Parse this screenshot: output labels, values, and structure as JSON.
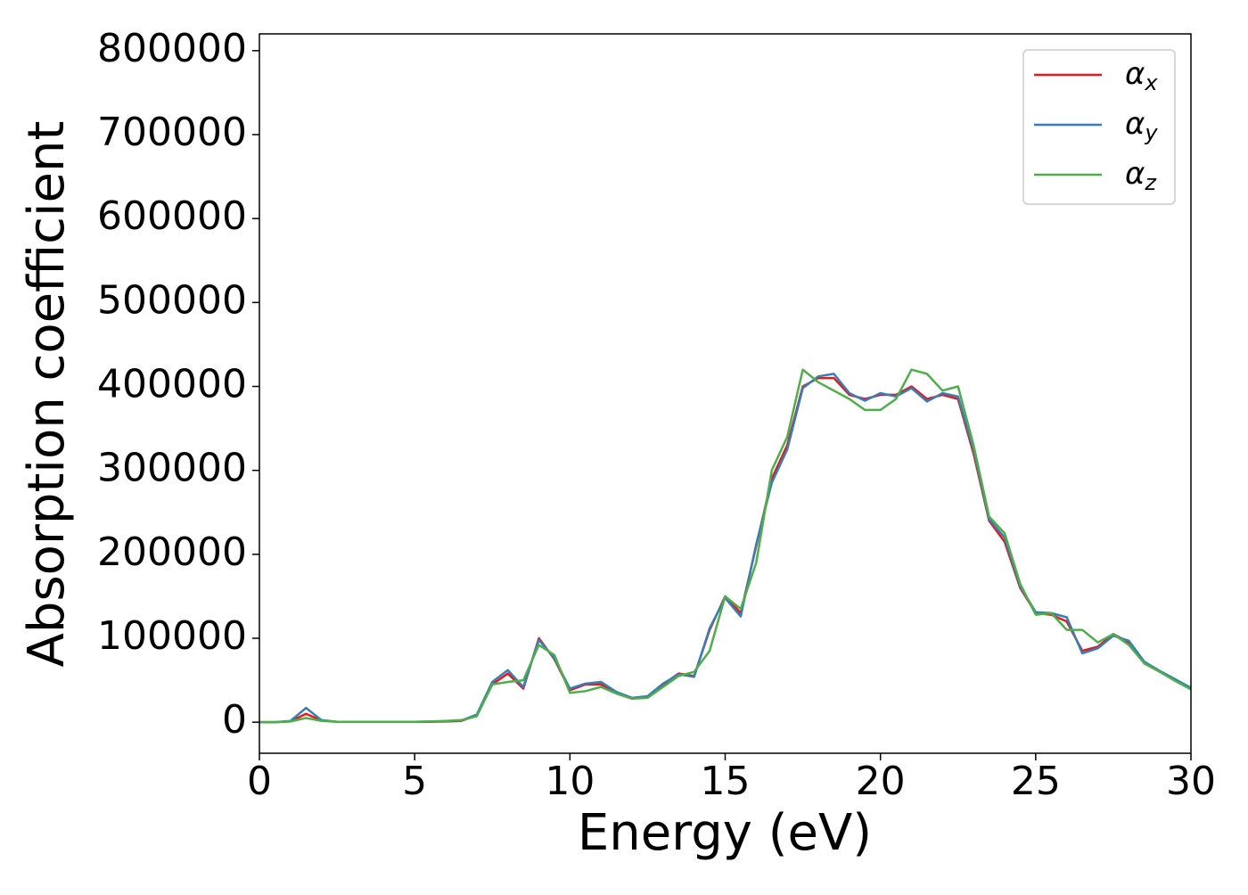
{
  "chart_data": {
    "type": "line",
    "xlabel": "Energy (eV)",
    "ylabel": "Absorption coefficient",
    "x": [
      0,
      0.5,
      1,
      1.5,
      2,
      2.5,
      3,
      3.5,
      4,
      4.5,
      5,
      5.5,
      6,
      6.5,
      7,
      7.5,
      8,
      8.5,
      9,
      9.5,
      10,
      10.5,
      11,
      11.5,
      12,
      12.5,
      13,
      13.5,
      14,
      14.5,
      15,
      15.5,
      16,
      16.5,
      17,
      17.5,
      18,
      18.5,
      19,
      19.5,
      20,
      20.5,
      21,
      21.5,
      22,
      22.5,
      23,
      23.5,
      24,
      24.5,
      25,
      25.5,
      26,
      26.5,
      27,
      27.5,
      28,
      28.5,
      29,
      29.5,
      30
    ],
    "series": [
      {
        "name": "αx",
        "color": "#e41a1c",
        "values": [
          0,
          0,
          1000,
          10000,
          2000,
          500,
          500,
          500,
          500,
          500,
          500,
          500,
          800,
          1500,
          8000,
          45000,
          58000,
          40000,
          100000,
          75000,
          38000,
          45000,
          45000,
          35000,
          28000,
          30000,
          45000,
          58000,
          55000,
          110000,
          150000,
          130000,
          210000,
          290000,
          330000,
          400000,
          410000,
          410000,
          390000,
          385000,
          390000,
          390000,
          400000,
          385000,
          390000,
          385000,
          320000,
          240000,
          215000,
          160000,
          130000,
          128000,
          120000,
          85000,
          90000,
          105000,
          95000,
          70000,
          60000,
          50000,
          40000
        ]
      },
      {
        "name": "αy",
        "color": "#377eb8",
        "values": [
          0,
          0,
          1500,
          17000,
          2500,
          500,
          500,
          500,
          500,
          500,
          500,
          800,
          1200,
          2000,
          9000,
          48000,
          62000,
          42000,
          98000,
          76000,
          40000,
          46000,
          48000,
          36000,
          29000,
          31000,
          46000,
          57000,
          54000,
          112000,
          148000,
          126000,
          212000,
          285000,
          325000,
          398000,
          412000,
          415000,
          392000,
          383000,
          392000,
          388000,
          398000,
          382000,
          392000,
          388000,
          325000,
          242000,
          220000,
          162000,
          131000,
          130000,
          125000,
          82000,
          88000,
          103000,
          97000,
          72000,
          61000,
          51000,
          41000
        ]
      },
      {
        "name": "αz",
        "color": "#4daf4a",
        "values": [
          0,
          0,
          800,
          5000,
          1500,
          500,
          500,
          500,
          500,
          500,
          500,
          800,
          1500,
          2500,
          7000,
          45000,
          48000,
          50000,
          92000,
          80000,
          35000,
          37000,
          42000,
          34000,
          28000,
          29000,
          42000,
          55000,
          60000,
          85000,
          150000,
          135000,
          190000,
          300000,
          340000,
          420000,
          405000,
          395000,
          385000,
          372000,
          372000,
          385000,
          420000,
          415000,
          395000,
          400000,
          330000,
          245000,
          225000,
          165000,
          128000,
          130000,
          110000,
          110000,
          95000,
          105000,
          92000,
          70000,
          60000,
          49000,
          39000
        ]
      }
    ],
    "xlim": [
      0,
      30
    ],
    "xticks": [
      0,
      5,
      10,
      15,
      20,
      25,
      30
    ],
    "ylim": [
      -37000,
      820000
    ],
    "yticks": [
      0,
      100000,
      200000,
      300000,
      400000,
      500000,
      600000,
      700000,
      800000
    ],
    "grid": false,
    "legend": "upper right"
  }
}
